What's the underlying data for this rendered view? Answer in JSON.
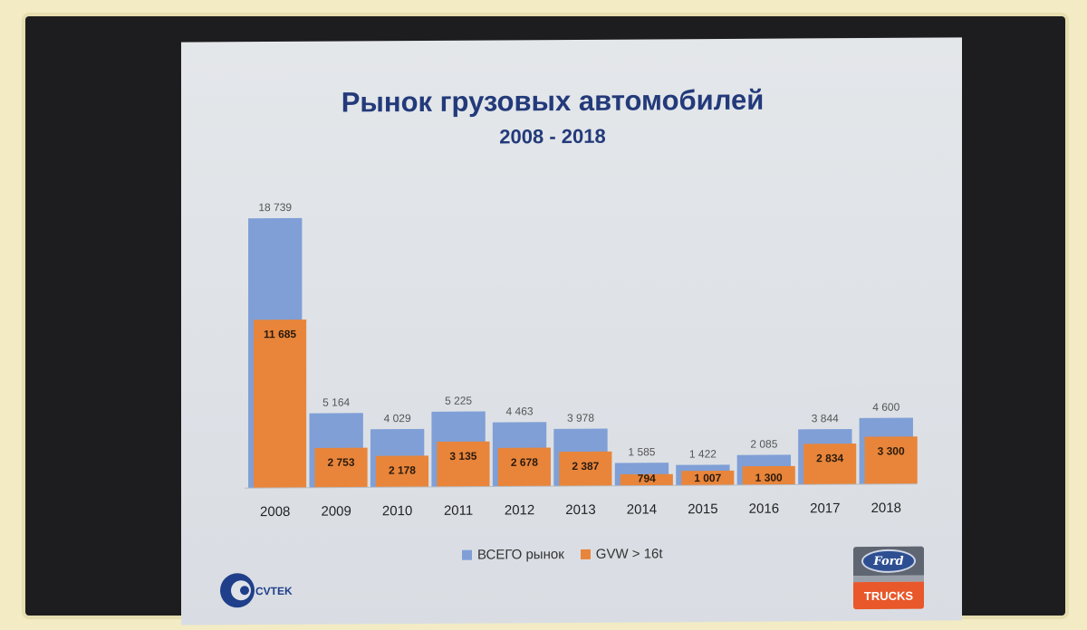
{
  "slide": {
    "title": "Рынок грузовых автомобилей",
    "subtitle": "2008 - 2018",
    "company_logo_text": "CVTEK",
    "brand_logo_text": "Ford",
    "brand_logo_sub": "TRUCKS"
  },
  "chart_data": {
    "type": "bar",
    "categories": [
      "2008",
      "2009",
      "2010",
      "2011",
      "2012",
      "2013",
      "2014",
      "2015",
      "2016",
      "2017",
      "2018"
    ],
    "series": [
      {
        "name": "ВСЕГО рынок",
        "color": "#7f9fd6",
        "values": [
          18739,
          5164,
          4029,
          5225,
          4463,
          3978,
          1585,
          1422,
          2085,
          3844,
          4600
        ],
        "labels": [
          "18 739",
          "5 164",
          "4 029",
          "5 225",
          "4 463",
          "3 978",
          "1 585",
          "1 422",
          "2 085",
          "3 844",
          "4 600"
        ]
      },
      {
        "name": "GVW > 16t",
        "color": "#e8853a",
        "values": [
          11685,
          2753,
          2178,
          3135,
          2678,
          2387,
          794,
          1007,
          1300,
          2834,
          3300
        ],
        "labels": [
          "11 685",
          "2 753",
          "2 178",
          "3 135",
          "2 678",
          "2 387",
          "794",
          "1 007",
          "1 300",
          "2 834",
          "3 300"
        ]
      }
    ],
    "legend_position": "bottom",
    "grid": false,
    "ylim": [
      0,
      20000
    ]
  }
}
